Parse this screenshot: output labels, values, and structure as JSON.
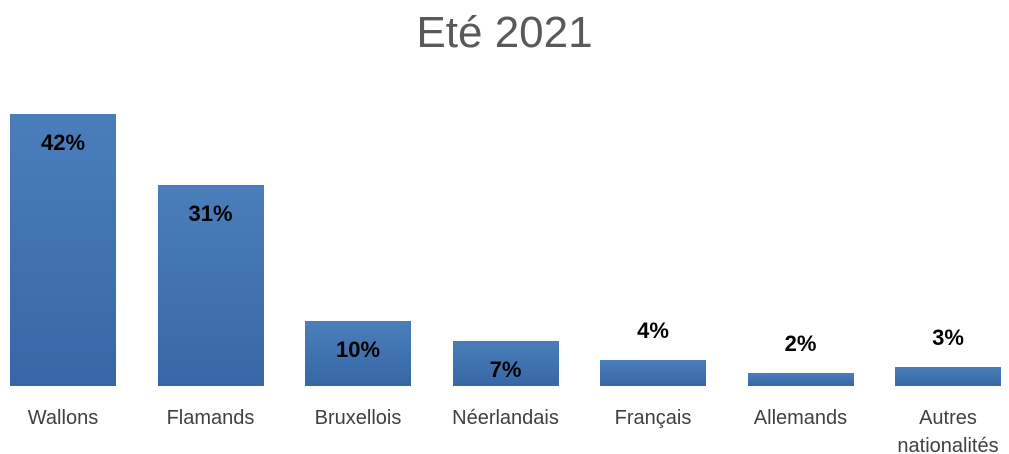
{
  "chart_data": {
    "type": "bar",
    "title": "Eté 2021",
    "categories": [
      "Wallons",
      "Flamands",
      "Bruxellois",
      "Néerlandais",
      "Français",
      "Allemands",
      "Autres nationalités"
    ],
    "values": [
      42,
      31,
      10,
      7,
      4,
      2,
      3
    ],
    "value_labels": [
      "42%",
      "31%",
      "10%",
      "7%",
      "4%",
      "2%",
      "3%"
    ],
    "color": "#4a7ebb"
  }
}
